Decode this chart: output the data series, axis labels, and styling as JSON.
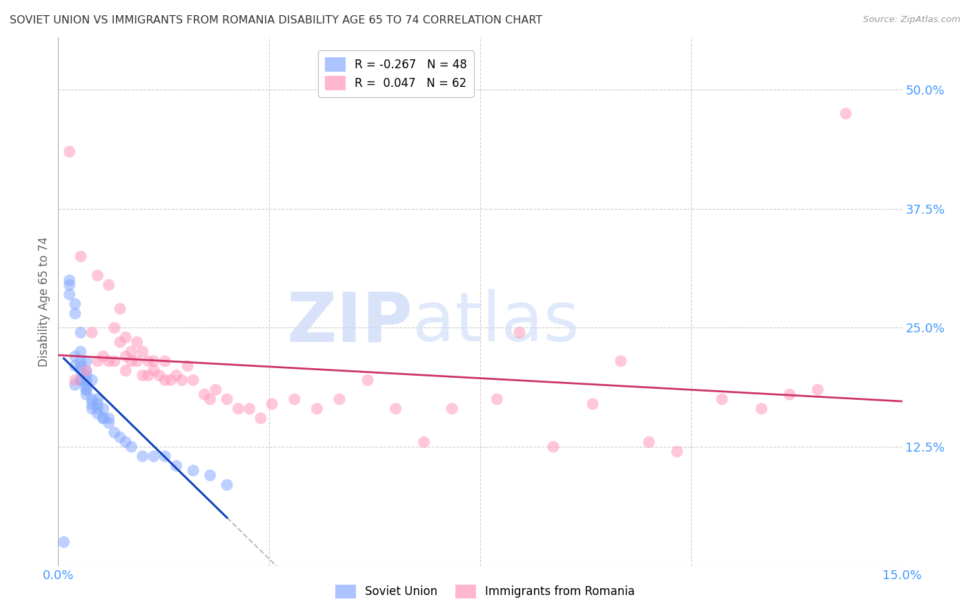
{
  "title": "SOVIET UNION VS IMMIGRANTS FROM ROMANIA DISABILITY AGE 65 TO 74 CORRELATION CHART",
  "source": "Source: ZipAtlas.com",
  "ylabel": "Disability Age 65 to 74",
  "xlim": [
    0.0,
    0.15
  ],
  "ylim": [
    0.0,
    0.5556
  ],
  "xticks": [
    0.0,
    0.0375,
    0.075,
    0.1125,
    0.15
  ],
  "xticklabels": [
    "0.0%",
    "",
    "",
    "",
    "15.0%"
  ],
  "yticks_right": [
    0.0,
    0.125,
    0.25,
    0.375,
    0.5
  ],
  "yticklabels_right": [
    "",
    "12.5%",
    "25.0%",
    "37.5%",
    "50.0%"
  ],
  "legend1_label": "R = -0.267   N = 48",
  "legend2_label": "R =  0.047   N = 62",
  "legend1_color": "#88aaff",
  "legend2_color": "#ff99bb",
  "series1_name": "Soviet Union",
  "series2_name": "Immigrants from Romania",
  "background_color": "#ffffff",
  "grid_color": "#cccccc",
  "title_color": "#333333",
  "axis_label_color": "#666666",
  "right_axis_color": "#4499ff",
  "trendline_blue_color": "#1144bb",
  "trendline_pink_color": "#cc3366",
  "trendline_dashed_color": "#bbbbbb",
  "soviet_union_x": [
    0.001,
    0.002,
    0.002,
    0.002,
    0.003,
    0.003,
    0.003,
    0.003,
    0.003,
    0.004,
    0.004,
    0.004,
    0.004,
    0.004,
    0.004,
    0.004,
    0.005,
    0.005,
    0.005,
    0.005,
    0.005,
    0.005,
    0.005,
    0.005,
    0.006,
    0.006,
    0.006,
    0.006,
    0.007,
    0.007,
    0.007,
    0.007,
    0.008,
    0.008,
    0.008,
    0.009,
    0.009,
    0.01,
    0.011,
    0.012,
    0.013,
    0.015,
    0.017,
    0.019,
    0.021,
    0.024,
    0.027,
    0.03
  ],
  "soviet_union_y": [
    0.025,
    0.295,
    0.3,
    0.285,
    0.265,
    0.275,
    0.19,
    0.22,
    0.21,
    0.245,
    0.225,
    0.215,
    0.21,
    0.205,
    0.195,
    0.195,
    0.215,
    0.205,
    0.2,
    0.195,
    0.19,
    0.185,
    0.185,
    0.18,
    0.195,
    0.175,
    0.17,
    0.165,
    0.175,
    0.17,
    0.165,
    0.16,
    0.165,
    0.155,
    0.155,
    0.155,
    0.15,
    0.14,
    0.135,
    0.13,
    0.125,
    0.115,
    0.115,
    0.115,
    0.105,
    0.1,
    0.095,
    0.085
  ],
  "romania_x": [
    0.002,
    0.003,
    0.004,
    0.005,
    0.006,
    0.007,
    0.007,
    0.008,
    0.009,
    0.009,
    0.01,
    0.01,
    0.011,
    0.011,
    0.012,
    0.012,
    0.012,
    0.013,
    0.013,
    0.014,
    0.014,
    0.015,
    0.015,
    0.016,
    0.016,
    0.017,
    0.017,
    0.018,
    0.019,
    0.019,
    0.02,
    0.021,
    0.022,
    0.023,
    0.024,
    0.026,
    0.027,
    0.028,
    0.03,
    0.032,
    0.034,
    0.036,
    0.038,
    0.042,
    0.046,
    0.05,
    0.055,
    0.06,
    0.065,
    0.07,
    0.078,
    0.082,
    0.088,
    0.095,
    0.1,
    0.105,
    0.11,
    0.118,
    0.125,
    0.13,
    0.135,
    0.14
  ],
  "romania_y": [
    0.435,
    0.195,
    0.325,
    0.205,
    0.245,
    0.305,
    0.215,
    0.22,
    0.215,
    0.295,
    0.25,
    0.215,
    0.27,
    0.235,
    0.24,
    0.22,
    0.205,
    0.225,
    0.215,
    0.235,
    0.215,
    0.225,
    0.2,
    0.215,
    0.2,
    0.215,
    0.205,
    0.2,
    0.195,
    0.215,
    0.195,
    0.2,
    0.195,
    0.21,
    0.195,
    0.18,
    0.175,
    0.185,
    0.175,
    0.165,
    0.165,
    0.155,
    0.17,
    0.175,
    0.165,
    0.175,
    0.195,
    0.165,
    0.13,
    0.165,
    0.175,
    0.245,
    0.125,
    0.17,
    0.215,
    0.13,
    0.12,
    0.175,
    0.165,
    0.18,
    0.185,
    0.475
  ],
  "soviet_r": -0.267,
  "soviet_n": 48,
  "romania_r": 0.047,
  "romania_n": 62
}
